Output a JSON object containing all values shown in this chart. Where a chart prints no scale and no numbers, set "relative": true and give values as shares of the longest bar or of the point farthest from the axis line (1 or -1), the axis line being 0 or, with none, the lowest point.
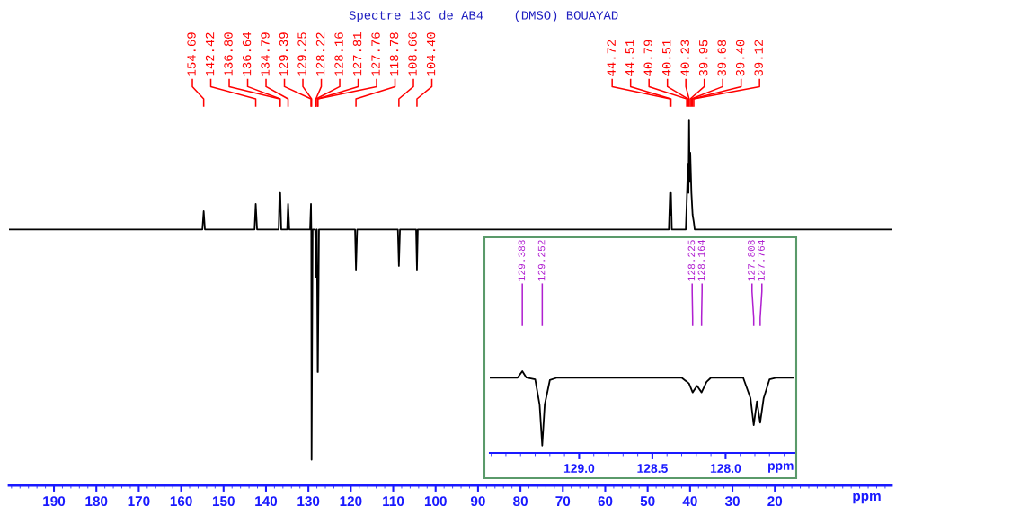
{
  "chart_data": [
    {
      "type": "line",
      "title": "Spectre 13C de AB4    (DMSO) BOUAYAD",
      "xlabel": "ppm",
      "relative": true,
      "tick_labels": "x",
      "grid": false,
      "legend": false,
      "xlim": [
        200.6,
        -7.5
      ],
      "xticks": [
        190,
        180,
        170,
        160,
        150,
        140,
        130,
        120,
        110,
        100,
        90,
        80,
        70,
        60,
        50,
        40,
        30,
        20
      ],
      "series": [
        {
          "color": "#000000",
          "x": [
            200.6,
            155.0,
            154.69,
            154.4,
            142.7,
            142.42,
            142.1,
            137.0,
            136.8,
            136.72,
            136.64,
            136.4,
            135.0,
            134.79,
            134.5,
            129.6,
            129.39,
            129.32,
            129.25,
            129.0,
            128.4,
            128.22,
            128.19,
            128.16,
            128.0,
            127.81,
            127.785,
            127.76,
            127.5,
            119.0,
            118.78,
            118.5,
            108.9,
            108.66,
            108.4,
            104.6,
            104.4,
            104.2,
            45.0,
            44.72,
            44.62,
            44.51,
            44.3,
            41.0,
            40.79,
            40.51,
            40.37,
            40.23,
            40.09,
            39.95,
            39.68,
            39.4,
            39.12,
            38.9,
            -7.5
          ],
          "values": [
            0.7,
            0.7,
            0.75,
            0.7,
            0.7,
            0.77,
            0.7,
            0.7,
            0.8,
            0.77,
            0.8,
            0.7,
            0.7,
            0.77,
            0.7,
            0.7,
            0.77,
            0.7,
            0.07,
            0.7,
            0.7,
            0.57,
            0.65,
            0.57,
            0.7,
            0.31,
            0.51,
            0.31,
            0.7,
            0.7,
            0.59,
            0.7,
            0.7,
            0.6,
            0.7,
            0.7,
            0.59,
            0.7,
            0.7,
            0.8,
            0.74,
            0.8,
            0.7,
            0.7,
            0.77,
            0.88,
            0.8,
            1,
            0.83,
            0.91,
            0.8,
            0.74,
            0.72,
            0.7,
            0.7
          ]
        }
      ],
      "annotations": [
        "154.69",
        "142.42",
        "136.80",
        "136.64",
        "134.79",
        "129.39",
        "129.25",
        "128.22",
        "128.16",
        "127.81",
        "127.76",
        "118.78",
        "108.66",
        "104.40",
        "44.72",
        "44.51",
        "40.79",
        "40.51",
        "40.23",
        "39.95",
        "39.68",
        "39.40",
        "39.12"
      ]
    },
    {
      "type": "line",
      "xlabel": "ppm",
      "relative": true,
      "tick_labels": "x",
      "grid": false,
      "legend": false,
      "xlim": [
        129.61,
        127.53
      ],
      "xticks": [
        {
          "value": 129.0,
          "label": "129.0"
        },
        {
          "value": 128.5,
          "label": "128.5"
        },
        {
          "value": 128.0,
          "label": "128.0"
        }
      ],
      "series": [
        {
          "color": "#000000",
          "x": [
            129.61,
            129.42,
            129.388,
            129.36,
            129.3,
            129.27,
            129.252,
            129.235,
            129.2,
            129.15,
            128.3,
            128.25,
            128.225,
            128.195,
            128.164,
            128.13,
            128.1,
            127.88,
            127.83,
            127.808,
            127.786,
            127.764,
            127.74,
            127.7,
            127.65,
            127.53
          ],
          "values": [
            0.92,
            0.92,
            1,
            0.92,
            0.9,
            0.59,
            0.09,
            0.59,
            0.89,
            0.92,
            0.92,
            0.85,
            0.74,
            0.82,
            0.74,
            0.87,
            0.92,
            0.92,
            0.67,
            0.34,
            0.63,
            0.37,
            0.67,
            0.9,
            0.92,
            0.92
          ]
        }
      ],
      "annotations": [
        "129.388",
        "129.252",
        "128.225",
        "128.164",
        "127.808",
        "127.764"
      ]
    }
  ]
}
